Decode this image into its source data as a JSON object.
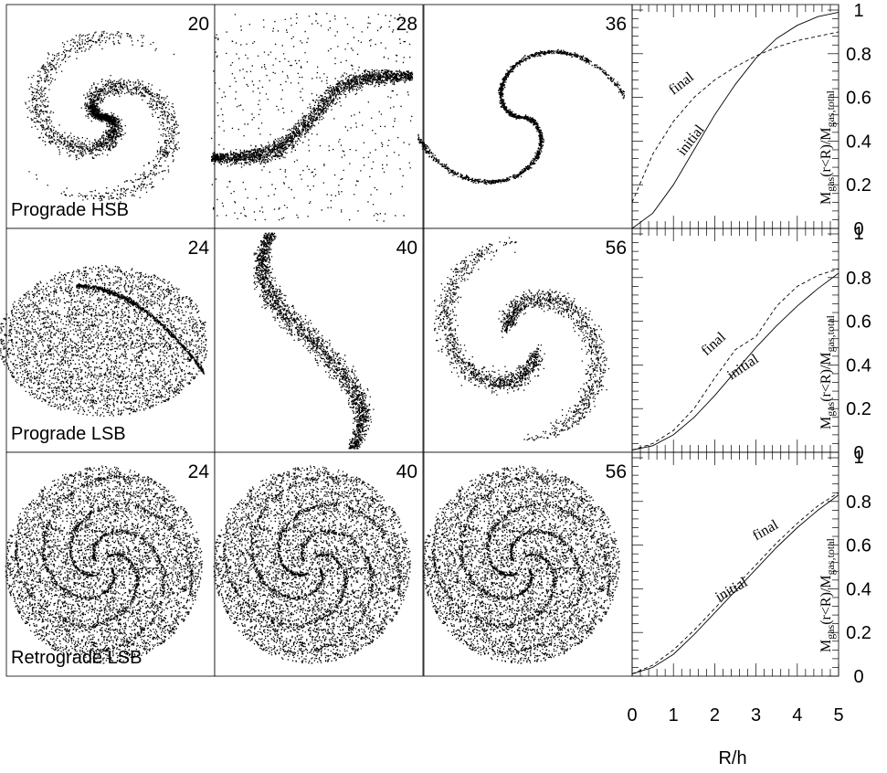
{
  "rows": [
    {
      "label": "Prograde HSB",
      "times": [
        "20",
        "28",
        "36"
      ],
      "kind": "hsb"
    },
    {
      "label": "Prograde LSB",
      "times": [
        "24",
        "40",
        "56"
      ],
      "kind": "lsb"
    },
    {
      "label": "Retrograde LSB",
      "times": [
        "24",
        "40",
        "56"
      ],
      "kind": "retro"
    }
  ],
  "curve_labels": {
    "final": "final",
    "initial": "initial"
  },
  "y_ticks": [
    "1",
    "0.8",
    "0.6",
    "0.4",
    "0.2",
    "0"
  ],
  "y_axis_title": "M_gas(r<R)/M_gas,total",
  "x_ticks": [
    "0",
    "1",
    "2",
    "3",
    "4",
    "5"
  ],
  "x_axis_title": "R/h",
  "chart_data": [
    {
      "type": "line",
      "xlabel": "R/h",
      "ylabel": "M_gas(r<R)/M_gas,total",
      "xlim": [
        0,
        5
      ],
      "ylim": [
        0,
        1
      ],
      "series": [
        {
          "name": "initial",
          "style": "solid",
          "x": [
            0,
            0.5,
            1,
            1.5,
            2,
            2.5,
            3,
            3.5,
            4,
            4.5,
            5
          ],
          "y": [
            0,
            0.07,
            0.2,
            0.36,
            0.52,
            0.66,
            0.78,
            0.87,
            0.93,
            0.97,
            0.99
          ]
        },
        {
          "name": "final",
          "style": "dashed",
          "x": [
            0,
            0.5,
            1,
            1.5,
            2,
            2.5,
            3,
            3.5,
            4,
            4.5,
            5
          ],
          "y": [
            0.12,
            0.34,
            0.49,
            0.6,
            0.68,
            0.74,
            0.79,
            0.83,
            0.86,
            0.88,
            0.9
          ]
        }
      ]
    },
    {
      "type": "line",
      "xlabel": "R/h",
      "ylabel": "M_gas(r<R)/M_gas,total",
      "xlim": [
        0,
        5
      ],
      "ylim": [
        0,
        1
      ],
      "series": [
        {
          "name": "initial",
          "style": "solid",
          "x": [
            0,
            0.5,
            1,
            1.5,
            2,
            2.5,
            3,
            3.5,
            4,
            4.5,
            5
          ],
          "y": [
            0.01,
            0.03,
            0.08,
            0.16,
            0.26,
            0.37,
            0.48,
            0.58,
            0.67,
            0.75,
            0.82
          ]
        },
        {
          "name": "final",
          "style": "dashed",
          "x": [
            0,
            0.5,
            1,
            1.5,
            2,
            2.5,
            3,
            3.5,
            4,
            4.5,
            5
          ],
          "y": [
            0.01,
            0.04,
            0.1,
            0.2,
            0.34,
            0.47,
            0.53,
            0.67,
            0.76,
            0.81,
            0.84
          ]
        }
      ]
    },
    {
      "type": "line",
      "xlabel": "R/h",
      "ylabel": "M_gas(r<R)/M_gas,total",
      "xlim": [
        0,
        5
      ],
      "ylim": [
        0,
        1
      ],
      "series": [
        {
          "name": "initial",
          "style": "solid",
          "x": [
            0,
            0.5,
            1,
            1.5,
            2,
            2.5,
            3,
            3.5,
            4,
            4.5,
            5
          ],
          "y": [
            0.01,
            0.04,
            0.1,
            0.19,
            0.29,
            0.39,
            0.49,
            0.59,
            0.68,
            0.76,
            0.83
          ]
        },
        {
          "name": "final",
          "style": "dashed",
          "x": [
            0,
            0.5,
            1,
            1.5,
            2,
            2.5,
            3,
            3.5,
            4,
            4.5,
            5
          ],
          "y": [
            0.01,
            0.05,
            0.12,
            0.21,
            0.31,
            0.41,
            0.51,
            0.61,
            0.7,
            0.78,
            0.84
          ]
        }
      ]
    }
  ]
}
